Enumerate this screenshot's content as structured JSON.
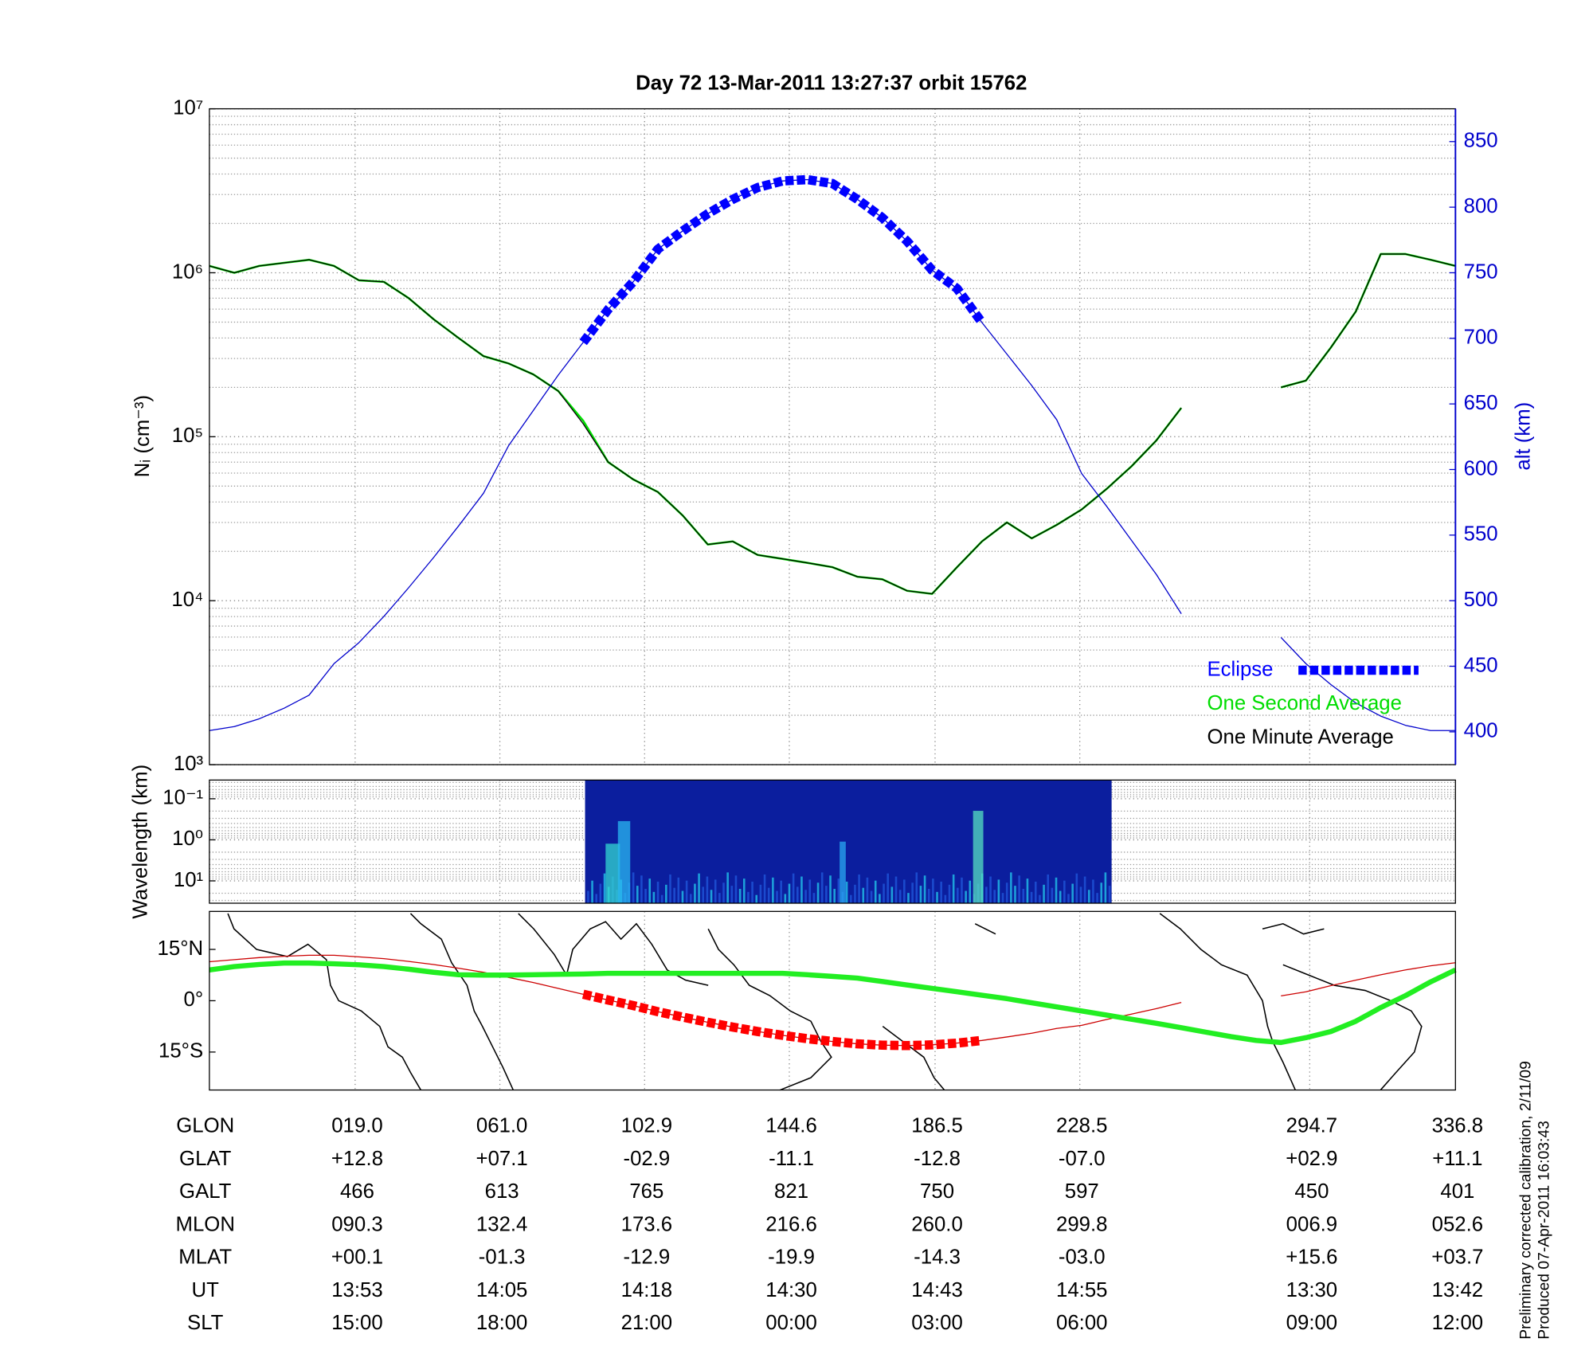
{
  "chart_data": [
    {
      "type": "line",
      "title": "Day 72  13-Mar-2011 13:27:37   orbit 15762",
      "ylabel": "Nᵢ (cm⁻³)",
      "y2label": "alt (km)",
      "ylog": true,
      "ylim": [
        1000,
        10000000
      ],
      "yticks": [
        {
          "value": 1000,
          "label": "10³"
        },
        {
          "value": 10000,
          "label": "10⁴"
        },
        {
          "value": 100000,
          "label": "10⁵"
        },
        {
          "value": 1000000,
          "label": "10⁶"
        },
        {
          "value": 10000000,
          "label": "10⁷"
        }
      ],
      "y2lim": [
        375,
        875
      ],
      "y2ticks": [
        400,
        450,
        500,
        550,
        600,
        650,
        700,
        750,
        800,
        850
      ],
      "y2color": "#0000cc",
      "grid": true,
      "legend": "lower right",
      "series": [
        {
          "name": "One Second Average",
          "color": "#00dd00",
          "width": 2,
          "values": [
            1100000,
            1000000,
            1100000,
            1150000,
            1200000,
            1100000,
            900000,
            880000,
            700000,
            520000,
            400000,
            310000,
            280000,
            240000,
            190000,
            125000,
            70000,
            55000,
            46000,
            33000,
            22000,
            23000,
            19000,
            18000,
            17000,
            16000,
            14000,
            13500,
            11500,
            11000,
            16000,
            23000,
            30000,
            24000,
            29000,
            36000,
            48000,
            66000,
            95000,
            150000,
            null,
            null,
            null,
            200000,
            220000,
            350000,
            580000,
            1300000,
            1300000,
            1200000,
            1100000
          ]
        },
        {
          "name": "One Minute Average",
          "color": "#000000",
          "width": 1,
          "values": [
            1100000,
            1000000,
            1100000,
            1150000,
            1200000,
            1100000,
            900000,
            880000,
            700000,
            520000,
            400000,
            310000,
            280000,
            240000,
            190000,
            120000,
            70000,
            55000,
            46000,
            33000,
            22000,
            23000,
            19000,
            18000,
            17000,
            16000,
            14000,
            13500,
            11500,
            11000,
            16000,
            23000,
            30000,
            24000,
            29000,
            36000,
            48000,
            66000,
            95000,
            150000,
            null,
            null,
            null,
            200000,
            220000,
            350000,
            580000,
            1300000,
            1300000,
            1200000,
            1100000
          ]
        },
        {
          "axis": "y2",
          "color": "#0000cc",
          "width": 1,
          "values": [
            401,
            404,
            410,
            418,
            428,
            452,
            468,
            488,
            510,
            533,
            557,
            582,
            618,
            645,
            672,
            697,
            722,
            743,
            768,
            782,
            795,
            806,
            815,
            820,
            821,
            818,
            806,
            792,
            774,
            752,
            738,
            712,
            688,
            664,
            638,
            597,
            572,
            546,
            520,
            490,
            null,
            null,
            null,
            472,
            452,
            436,
            422,
            412,
            405,
            401,
            401
          ]
        },
        {
          "name": "Eclipse",
          "axis": "y2",
          "color": "#0000ff",
          "width": 9,
          "marker": "square",
          "values": [
            null,
            null,
            null,
            null,
            null,
            null,
            null,
            null,
            null,
            null,
            null,
            null,
            null,
            null,
            null,
            697,
            722,
            743,
            768,
            782,
            795,
            806,
            815,
            820,
            821,
            818,
            806,
            792,
            774,
            752,
            738,
            712,
            null,
            null,
            null,
            null,
            null,
            null,
            null,
            null,
            null,
            null,
            null,
            null,
            null,
            null,
            null,
            null,
            null,
            null,
            null
          ]
        }
      ]
    },
    {
      "type": "heatmap",
      "ylabel": "Wavelength (km)",
      "ylog": true,
      "ylim": [
        35,
        0.035
      ],
      "yticks": [
        {
          "value": 0.1,
          "label": "10⁻¹"
        },
        {
          "value": 1,
          "label": "10⁰"
        },
        {
          "value": 10,
          "label": "10¹"
        }
      ],
      "grid": true
    },
    {
      "type": "map",
      "ylim": [
        -26.1,
        26.1
      ],
      "yticks": [
        {
          "value": 15,
          "label": "15°N"
        },
        {
          "value": 0,
          "label": "0°"
        },
        {
          "value": -15,
          "label": "15°S"
        }
      ],
      "series": [
        {
          "color": "#cc0000",
          "width": 1,
          "values": [
            11.4,
            12.0,
            12.6,
            13.0,
            13.3,
            13.3,
            12.8,
            12.3,
            11.5,
            10.6,
            9.5,
            8.3,
            6.8,
            5.3,
            3.6,
            1.9,
            0.2,
            -1.4,
            -3.2,
            -4.8,
            -6.3,
            -7.7,
            -9.0,
            -10.1,
            -11.1,
            -11.9,
            -12.6,
            -13.0,
            -13.1,
            -12.9,
            -12.4,
            -11.6,
            -10.6,
            -9.5,
            -8.1,
            -7.2,
            -5.5,
            -3.9,
            -2.3,
            -0.5,
            null,
            null,
            null,
            1.4,
            2.6,
            4.4,
            6.0,
            7.6,
            9.0,
            10.2,
            11.1
          ]
        },
        {
          "color": "#ff0000",
          "width": 9,
          "marker": "square",
          "values": [
            null,
            null,
            null,
            null,
            null,
            null,
            null,
            null,
            null,
            null,
            null,
            null,
            null,
            null,
            null,
            1.9,
            0.2,
            -1.4,
            -3.2,
            -4.8,
            -6.3,
            -7.7,
            -9.0,
            -10.1,
            -11.1,
            -11.9,
            -12.6,
            -13.0,
            -13.1,
            -12.9,
            -12.4,
            -11.6,
            null,
            null,
            null,
            null,
            null,
            null,
            null,
            null,
            null,
            null,
            null,
            null,
            null,
            null,
            null,
            null,
            null,
            null,
            null
          ]
        },
        {
          "color": "#22ee22",
          "width": 5,
          "values": [
            9.0,
            10.0,
            10.6,
            11.0,
            11.0,
            10.8,
            10.5,
            10.0,
            9.2,
            8.3,
            7.6,
            7.5,
            7.5,
            7.6,
            7.7,
            7.8,
            8.0,
            8.0,
            8.0,
            8.0,
            8.0,
            8.0,
            8.0,
            8.0,
            7.6,
            7.1,
            6.6,
            5.6,
            4.6,
            3.6,
            2.6,
            1.6,
            0.6,
            -0.6,
            -1.8,
            -3.0,
            -4.2,
            -5.4,
            -6.6,
            -7.9,
            -9.2,
            -10.5,
            -11.6,
            -12.2,
            -10.8,
            -9.0,
            -6.0,
            -2.0,
            1.5,
            5.5,
            9.0
          ]
        }
      ]
    }
  ],
  "table": {
    "rows": [
      [
        "GLON",
        "019.0",
        "061.0",
        "102.9",
        "144.6",
        "186.5",
        "228.5",
        "294.7",
        "336.8"
      ],
      [
        "GLAT",
        "+12.8",
        "+07.1",
        "-02.9",
        "-11.1",
        "-12.8",
        "-07.0",
        "+02.9",
        "+11.1"
      ],
      [
        "GALT",
        "466",
        "613",
        "765",
        "821",
        "750",
        "597",
        "450",
        "401"
      ],
      [
        "MLON",
        "090.3",
        "132.4",
        "173.6",
        "216.6",
        "260.0",
        "299.8",
        "006.9",
        "052.6"
      ],
      [
        "MLAT",
        "+00.1",
        "-01.3",
        "-12.9",
        "-19.9",
        "-14.3",
        "-03.0",
        "+15.6",
        "+03.7"
      ],
      [
        "UT",
        "13:53",
        "14:05",
        "14:18",
        "14:30",
        "14:43",
        "14:55",
        "13:30",
        "13:42"
      ],
      [
        "SLT",
        "15:00",
        "18:00",
        "21:00",
        "00:00",
        "03:00",
        "06:00",
        "09:00",
        "12:00"
      ]
    ]
  },
  "footer": [
    "Preliminary corrected calibration, 2/11/09",
    "Produced 07-Apr-2011 16:03:43"
  ]
}
